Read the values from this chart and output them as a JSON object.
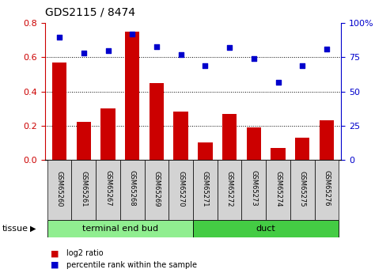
{
  "title": "GDS2115 / 8474",
  "samples": [
    "GSM65260",
    "GSM65261",
    "GSM65267",
    "GSM65268",
    "GSM65269",
    "GSM65270",
    "GSM65271",
    "GSM65272",
    "GSM65273",
    "GSM65274",
    "GSM65275",
    "GSM65276"
  ],
  "log2_ratio": [
    0.57,
    0.22,
    0.3,
    0.75,
    0.45,
    0.28,
    0.1,
    0.27,
    0.19,
    0.07,
    0.13,
    0.23
  ],
  "percentile": [
    90,
    78,
    80,
    92,
    83,
    77,
    69,
    82,
    74,
    57,
    69,
    81
  ],
  "bar_color": "#cc0000",
  "dot_color": "#0000cc",
  "ylim_left": [
    0,
    0.8
  ],
  "ylim_right": [
    0,
    100
  ],
  "yticks_left": [
    0,
    0.2,
    0.4,
    0.6,
    0.8
  ],
  "yticks_right": [
    0,
    25,
    50,
    75,
    100
  ],
  "groups": [
    {
      "label": "terminal end bud",
      "start": 0,
      "end": 6,
      "color": "#90ee90"
    },
    {
      "label": "duct",
      "start": 6,
      "end": 12,
      "color": "#44cc44"
    }
  ],
  "tissue_label": "tissue",
  "legend_bar_label": "log2 ratio",
  "legend_dot_label": "percentile rank within the sample",
  "tick_label_color_left": "#cc0000",
  "tick_label_color_right": "#0000cc",
  "bar_width": 0.6,
  "sample_bg_color": "#d3d3d3",
  "background_color": "#ffffff"
}
